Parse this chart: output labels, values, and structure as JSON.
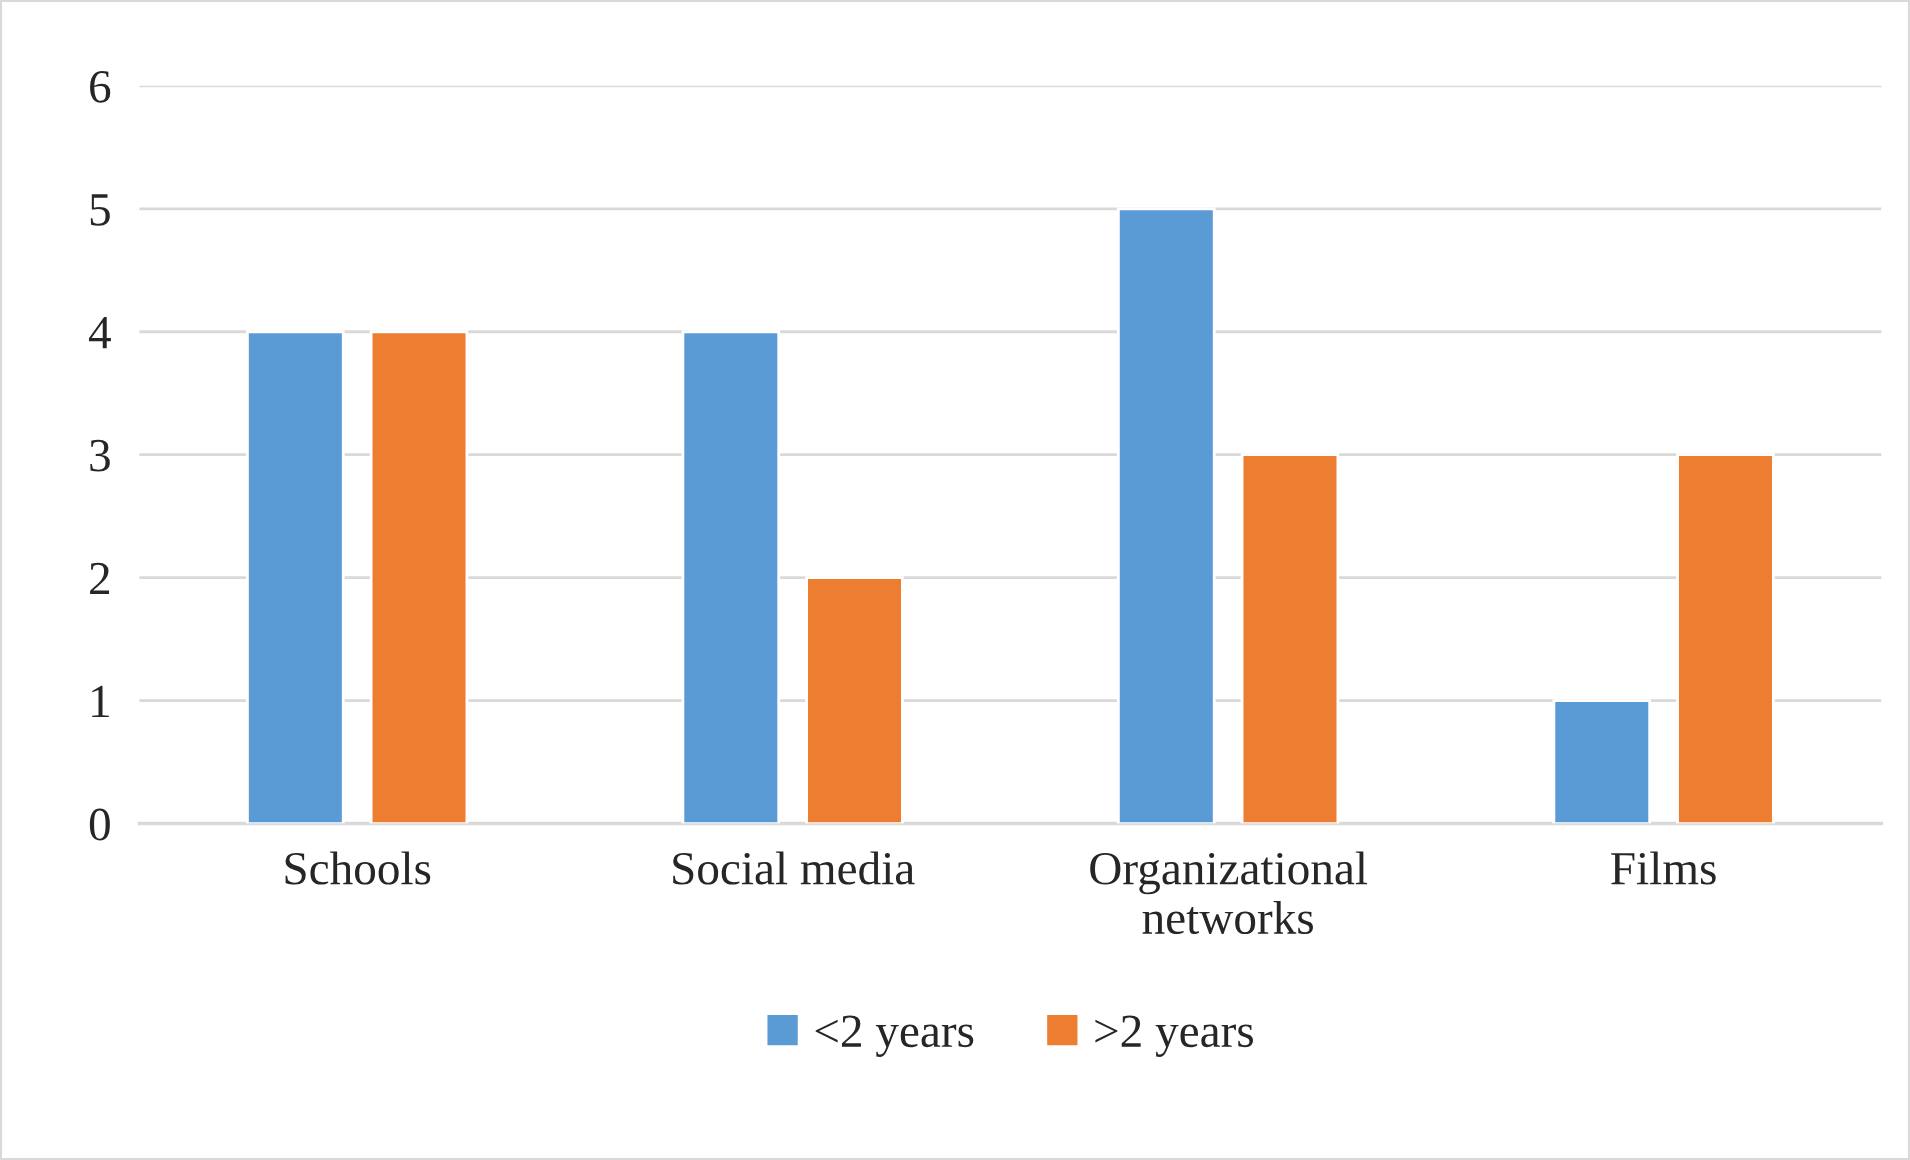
{
  "chart_data": {
    "type": "bar",
    "categories": [
      "Schools",
      "Social media",
      "Organizational networks",
      "Films"
    ],
    "series": [
      {
        "name": "<2 years",
        "color": "#5b9bd5",
        "values": [
          4,
          4,
          5,
          1
        ]
      },
      {
        "name": ">2 years",
        "color": "#ed7d31",
        "values": [
          4,
          2,
          3,
          3
        ]
      }
    ],
    "ylim": [
      0,
      6
    ],
    "yticks": [
      0,
      1,
      2,
      3,
      4,
      5,
      6
    ],
    "grid": "y",
    "legend": "bottom"
  }
}
